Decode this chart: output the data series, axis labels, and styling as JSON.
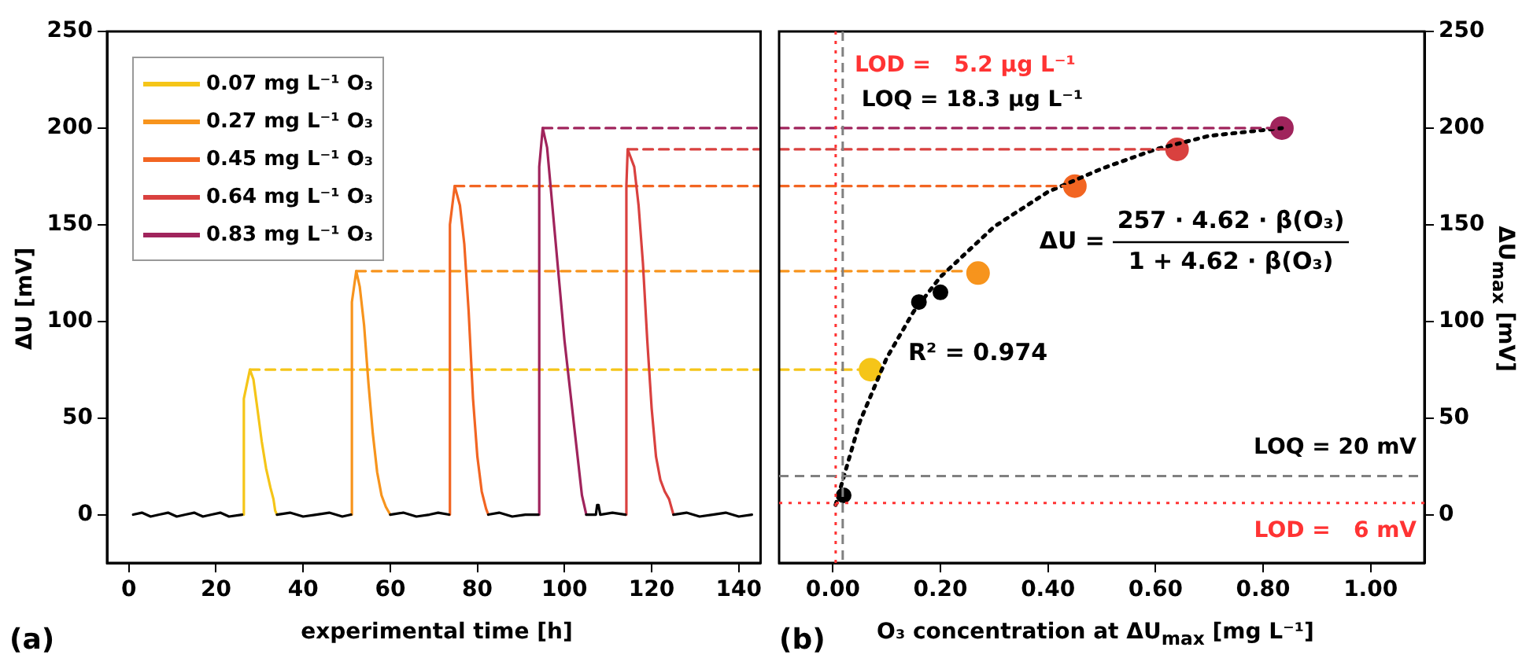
{
  "chart_data": [
    {
      "type": "line",
      "xlabel": "experimental time [h]",
      "ylabel": "ΔU [mV]",
      "xlim": [
        -5,
        145
      ],
      "ylim": [
        -25,
        250
      ],
      "xticks": [
        0,
        20,
        40,
        60,
        80,
        100,
        120,
        140
      ],
      "yticks": [
        0,
        50,
        100,
        150,
        200,
        250
      ],
      "grid": false,
      "legend": "top left",
      "marker": "none",
      "annotations": [
        "(a)"
      ],
      "series": [
        {
          "x": [
            1,
            3,
            5,
            7,
            9,
            11,
            13,
            15,
            17,
            19,
            21,
            23,
            26,
            30,
            34,
            37,
            40,
            43,
            46,
            49,
            51,
            55,
            60,
            63,
            66,
            69,
            71,
            73.5,
            78,
            82.5,
            85,
            88,
            91,
            94,
            100,
            105,
            106,
            107.2,
            107.5,
            107.8,
            108.2,
            111,
            114,
            120,
            125,
            128,
            131,
            134,
            137,
            140,
            143
          ],
          "values": [
            0,
            1,
            -1,
            0,
            1,
            -1,
            0,
            1,
            -1,
            0,
            1,
            -1,
            0,
            null,
            0,
            1,
            -1,
            0,
            1,
            -1,
            0,
            null,
            0,
            1,
            -1,
            0,
            1,
            0,
            null,
            0,
            1,
            -1,
            0,
            0,
            null,
            0,
            0,
            0,
            5,
            5,
            0,
            1,
            0,
            null,
            0,
            1,
            -1,
            0,
            1,
            -1,
            0
          ],
          "color": "#000000"
        },
        {
          "name": "0.07 mg L⁻¹ O₃",
          "color": "#f5c518",
          "x": [
            26.2,
            26.4,
            27.8,
            28.6,
            29.5,
            30.5,
            31.5,
            32.5,
            33.2,
            33.6,
            34
          ],
          "values": [
            0,
            60,
            75,
            70,
            55,
            38,
            24,
            14,
            8,
            2,
            0
          ]
        },
        {
          "name": "0.27 mg L⁻¹ O₃",
          "color": "#f7941d",
          "x": [
            51,
            51.2,
            52.2,
            53,
            54,
            55,
            56,
            57,
            58,
            59,
            60
          ],
          "values": [
            0,
            110,
            126,
            118,
            98,
            68,
            42,
            22,
            10,
            4,
            0
          ]
        },
        {
          "name": "0.45 mg L⁻¹ O₃",
          "color": "#f26522",
          "x": [
            73.5,
            73.7,
            74.8,
            76,
            77,
            78,
            79,
            80,
            81,
            82,
            82.5
          ],
          "values": [
            0,
            150,
            170,
            160,
            140,
            105,
            60,
            30,
            12,
            3,
            0
          ]
        },
        {
          "name": "0.64 mg L⁻¹ O₃",
          "color": "#d9413f",
          "x": [
            114,
            114.2,
            114.5,
            116,
            117,
            118,
            119,
            120,
            121,
            122,
            123,
            124,
            125
          ],
          "values": [
            0,
            170,
            189,
            180,
            160,
            130,
            90,
            55,
            30,
            18,
            12,
            8,
            0
          ]
        },
        {
          "name": "0.83 mg L⁻¹ O₃",
          "color": "#a0245c",
          "x": [
            94,
            94.2,
            95,
            96,
            97,
            98,
            99,
            100,
            101,
            102,
            103,
            104,
            105
          ],
          "values": [
            0,
            180,
            200,
            190,
            165,
            140,
            115,
            90,
            70,
            50,
            30,
            10,
            0
          ]
        },
        {
          "color": "#f5c518",
          "x": [
            27.8,
            145
          ],
          "values": [
            75,
            75
          ],
          "line_style": "dashed"
        },
        {
          "color": "#f7941d",
          "x": [
            52.2,
            145
          ],
          "values": [
            126,
            126
          ],
          "line_style": "dashed"
        },
        {
          "color": "#f26522",
          "x": [
            74.8,
            145
          ],
          "values": [
            170,
            170
          ],
          "line_style": "dashed"
        },
        {
          "color": "#d9413f",
          "x": [
            114.5,
            145
          ],
          "values": [
            189,
            189
          ],
          "line_style": "dashed"
        },
        {
          "color": "#a0245c",
          "x": [
            95,
            145
          ],
          "values": [
            200,
            200
          ],
          "line_style": "dashed"
        }
      ]
    },
    {
      "type": "scatter",
      "xlabel": "O₃ concentration at ΔU$_{max}$ [mg L⁻¹]",
      "ylabel": "ΔU$_{max}$ [mV]",
      "xlim": [
        -0.1,
        1.1
      ],
      "ylim": [
        -25,
        250
      ],
      "xticks": [
        {
          "value": 0,
          "label": "0.00"
        },
        {
          "value": 0.2,
          "label": "0.20"
        },
        {
          "value": 0.4,
          "label": "0.40"
        },
        {
          "value": 0.6,
          "label": "0.60"
        },
        {
          "value": 0.8,
          "label": "0.80"
        },
        {
          "value": 1,
          "label": "1.00"
        }
      ],
      "yticks": [
        0,
        50,
        100,
        150,
        200,
        250
      ],
      "grid": false,
      "annotations": [
        "(b)",
        "R² = 0.974",
        "ΔU =",
        "257 · 4.62 · β(O₃)",
        "1 + 4.62 · β(O₃)"
      ],
      "ref_lines": [
        {
          "axis": "x",
          "value": 0.0052,
          "label": "LOD =   5.2 µg L⁻¹",
          "color": "#ff3333",
          "line_style": "dotted"
        },
        {
          "axis": "x",
          "value": 0.0183,
          "label": "LOQ = 18.3 µg L⁻¹",
          "color": "#808080",
          "line_style": "dashed"
        },
        {
          "axis": "y",
          "value": 20,
          "label": "LOQ = 20 mV",
          "color": "#808080",
          "line_style": "dashed"
        },
        {
          "axis": "y",
          "value": 6,
          "label": "LOD =   6 mV",
          "color": "#ff3333",
          "line_style": "dotted"
        }
      ],
      "series": [
        {
          "type": "line",
          "color": "#f5c518",
          "x": [
            -0.1,
            0.07
          ],
          "values": [
            75,
            75
          ],
          "line_style": "dashed"
        },
        {
          "type": "line",
          "color": "#f7941d",
          "x": [
            -0.1,
            0.27
          ],
          "values": [
            126,
            126
          ],
          "line_style": "dashed"
        },
        {
          "type": "line",
          "color": "#f26522",
          "x": [
            -0.1,
            0.45
          ],
          "values": [
            170,
            170
          ],
          "line_style": "dashed"
        },
        {
          "type": "line",
          "color": "#d9413f",
          "x": [
            -0.1,
            0.64
          ],
          "values": [
            189,
            189
          ],
          "line_style": "dashed"
        },
        {
          "type": "line",
          "color": "#a0245c",
          "x": [
            -0.1,
            0.835
          ],
          "values": [
            200,
            200
          ],
          "line_style": "dashed"
        },
        {
          "type": "line",
          "color": "#000000",
          "line_style": "dotted",
          "x": [
            0.005,
            0.05,
            0.1,
            0.15,
            0.2,
            0.3,
            0.4,
            0.5,
            0.6,
            0.7,
            0.835
          ],
          "values": [
            5,
            48,
            81,
            105,
            123,
            149,
            167,
            179,
            189,
            196,
            200
          ]
        },
        {
          "x": [
            0.02,
            0.16,
            0.2
          ],
          "values": [
            10,
            110,
            115
          ],
          "color": "#000000",
          "marker": "circle"
        },
        {
          "x": [
            0.07,
            0.27,
            0.45,
            0.64,
            0.835
          ],
          "values": [
            75,
            125,
            170,
            189,
            200
          ],
          "colors": [
            "#f5c518",
            "#f7941d",
            "#f26522",
            "#d9413f",
            "#a0245c"
          ],
          "marker": "circle"
        }
      ]
    }
  ]
}
